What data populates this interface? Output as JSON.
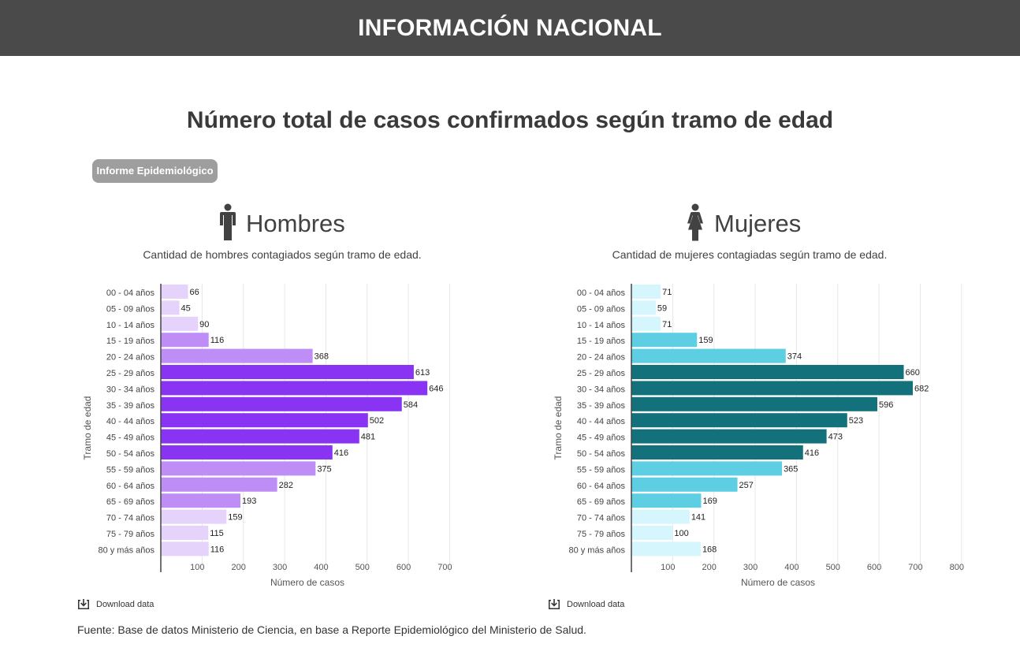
{
  "header": {
    "title": "INFORMACIÓN NACIONAL"
  },
  "page_title": "Número total de casos confirmados según tramo de edad",
  "badge_label": "Informe Epidemiológico",
  "panels": {
    "men": {
      "title": "Hombres",
      "subtitle": "Cantidad de hombres contagiados según tramo de edad.",
      "icon": "man-icon"
    },
    "women": {
      "title": "Mujeres",
      "subtitle": "Cantidad de mujeres contagiadas según tramo de edad.",
      "icon": "woman-icon"
    }
  },
  "download_label": "Download data",
  "source": "Fuente: Base de datos Ministerio de Ciencia, en base a Reporte Epidemiológico del Ministerio de Salud.",
  "chart_data": [
    {
      "type": "bar",
      "orientation": "horizontal",
      "xlabel": "Número de casos",
      "ylabel": "Tramo de edad",
      "xlim": [
        0,
        700
      ],
      "xticks": [
        100,
        200,
        300,
        400,
        500,
        600,
        700
      ],
      "grid": true,
      "categories": [
        "00 - 04 años",
        "05 - 09 años",
        "10 - 14 años",
        "15 - 19 años",
        "20 - 24 años",
        "25 - 29 años",
        "30 - 34 años",
        "35 - 39 años",
        "40 - 44 años",
        "45 - 49 años",
        "50 - 54 años",
        "55 - 59 años",
        "60 - 64 años",
        "65 - 69 años",
        "70 - 74 años",
        "75 - 79 años",
        "80 y más años"
      ],
      "values": [
        66,
        45,
        90,
        116,
        368,
        613,
        646,
        584,
        502,
        481,
        416,
        375,
        282,
        193,
        159,
        115,
        116
      ],
      "colors": [
        "#e6d3fb",
        "#e6d3fb",
        "#e6d3fb",
        "#bf8df6",
        "#bf8df6",
        "#8a34f3",
        "#8a34f3",
        "#8a34f3",
        "#8a34f3",
        "#8a34f3",
        "#8a34f3",
        "#bf8df6",
        "#bf8df6",
        "#bf8df6",
        "#e6d3fb",
        "#e6d3fb",
        "#e6d3fb"
      ]
    },
    {
      "type": "bar",
      "orientation": "horizontal",
      "xlabel": "Número de casos",
      "ylabel": "Tramo de edad",
      "xlim": [
        0,
        800
      ],
      "xticks": [
        100,
        200,
        300,
        400,
        500,
        600,
        700,
        800
      ],
      "grid": true,
      "categories": [
        "00 - 04 años",
        "05 - 09 años",
        "10 - 14 años",
        "15 - 19 años",
        "20 - 24 años",
        "25 - 29 años",
        "30 - 34 años",
        "35 - 39 años",
        "40 - 44 años",
        "45 - 49 años",
        "50 - 54 años",
        "55 - 59 años",
        "60 - 64 años",
        "65 - 69 años",
        "70 - 74 años",
        "75 - 79 años",
        "80 y más años"
      ],
      "values": [
        71,
        59,
        71,
        159,
        374,
        660,
        682,
        596,
        523,
        473,
        416,
        365,
        257,
        169,
        141,
        100,
        168
      ],
      "colors": [
        "#d4f6fc",
        "#d4f6fc",
        "#d4f6fc",
        "#5ecfe2",
        "#5ecfe2",
        "#13717b",
        "#13717b",
        "#13717b",
        "#13717b",
        "#13717b",
        "#13717b",
        "#5ecfe2",
        "#5ecfe2",
        "#5ecfe2",
        "#d4f6fc",
        "#d4f6fc",
        "#d4f6fc"
      ]
    }
  ]
}
